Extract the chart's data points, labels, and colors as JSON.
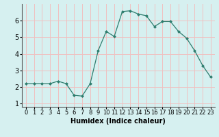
{
  "x": [
    0,
    1,
    2,
    3,
    4,
    5,
    6,
    7,
    8,
    9,
    10,
    11,
    12,
    13,
    14,
    15,
    16,
    17,
    18,
    19,
    20,
    21,
    22,
    23
  ],
  "y": [
    2.2,
    2.2,
    2.2,
    2.2,
    2.35,
    2.2,
    1.5,
    1.45,
    2.2,
    4.2,
    5.35,
    5.05,
    6.55,
    6.6,
    6.4,
    6.3,
    5.65,
    5.95,
    5.95,
    5.35,
    4.95,
    4.2,
    3.3,
    2.6
  ],
  "line_color": "#2e7d6e",
  "marker": "D",
  "marker_size": 2,
  "bg_color": "#d6f0f0",
  "grid_color": "#f0c0c0",
  "xlabel": "Humidex (Indice chaleur)",
  "xlim": [
    -0.5,
    23.5
  ],
  "ylim": [
    0.8,
    7.0
  ],
  "yticks": [
    1,
    2,
    3,
    4,
    5,
    6
  ],
  "xticks": [
    0,
    1,
    2,
    3,
    4,
    5,
    6,
    7,
    8,
    9,
    10,
    11,
    12,
    13,
    14,
    15,
    16,
    17,
    18,
    19,
    20,
    21,
    22,
    23
  ],
  "tick_label_fontsize": 6,
  "xlabel_fontsize": 7
}
